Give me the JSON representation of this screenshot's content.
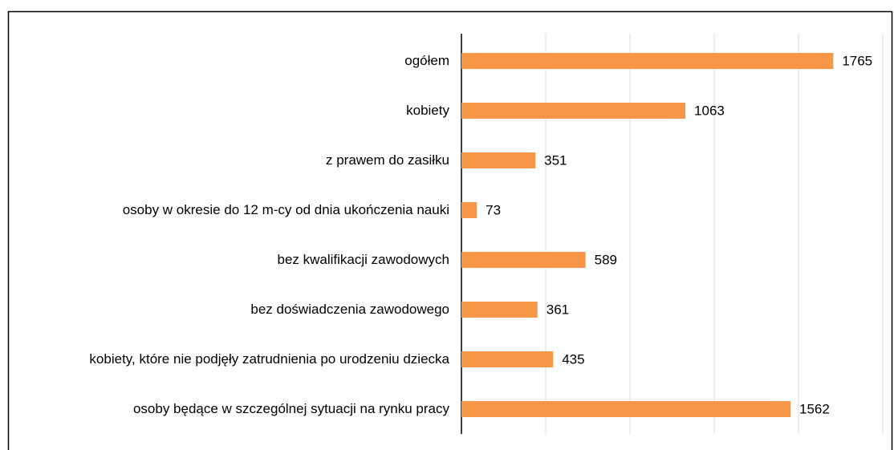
{
  "chart_data": {
    "type": "barh",
    "categories": [
      "ogółem",
      "kobiety",
      "z prawem do zasiłku",
      "osoby w okresie do 12 m-cy od dnia ukończenia nauki",
      "bez kwalifikacji zawodowych",
      "bez doświadczenia zawodowego",
      "kobiety, które nie podjęły zatrudnienia po urodzeniu dziecka",
      "osoby będące w szczególnej sytuacji na rynku pracy"
    ],
    "values": [
      1765,
      1063,
      351,
      73,
      589,
      361,
      435,
      1562
    ],
    "color": "#f79646",
    "xlim": [
      0,
      2000
    ],
    "xticks": [
      0,
      400,
      800,
      1200,
      1600,
      2000
    ],
    "grid": true
  }
}
